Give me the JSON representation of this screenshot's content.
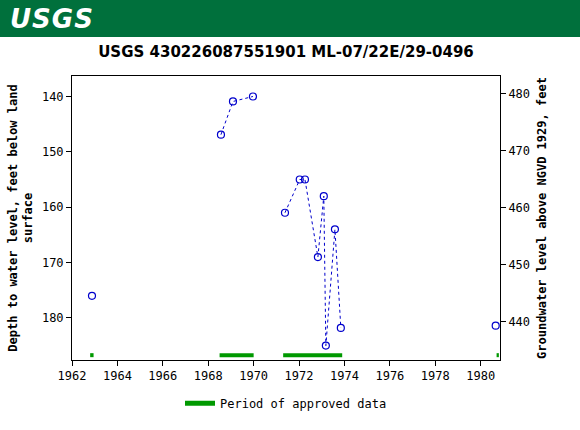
{
  "header": "USGS",
  "chart_data": {
    "type": "scatter",
    "title": "USGS 430226087551901 ML-07/22E/29-0496",
    "ylabel": "Depth to water level, feet below land surface",
    "y2label": "Groundwater level above NGVD 1929, feet",
    "x": [
      1962.88,
      null,
      1968.56,
      1969.09,
      1969.97,
      null,
      1971.38,
      1972.03,
      1972.26,
      1972.83,
      1973.09,
      1973.18,
      1973.58,
      1973.84,
      null,
      1980.66
    ],
    "series": [
      {
        "color": "#0000cc",
        "marker": "circle-open",
        "line_style": "dot",
        "values": [
          176,
          null,
          146.9,
          140.9,
          140.0,
          null,
          161.0,
          155.0,
          155.0,
          169.0,
          158.0,
          185.0,
          164.0,
          181.8,
          null,
          181.4
        ]
      }
    ],
    "approved_data": {
      "name": "Period of approved data",
      "color": "#009900",
      "periods": [
        [
          1962.8,
          1962.95
        ],
        [
          1968.5,
          1970.0
        ],
        [
          1971.3,
          1973.9
        ],
        [
          1980.7,
          1980.8
        ]
      ]
    },
    "xlim": [
      1962,
      1980.85
    ],
    "xticks": [
      1962,
      1964,
      1966,
      1968,
      1970,
      1972,
      1974,
      1976,
      1978,
      1980
    ],
    "ylim": [
      187.6,
      136.3
    ],
    "yticks": [
      140,
      150,
      160,
      170,
      180
    ],
    "y2lim": [
      433.3,
      483.1
    ],
    "y2ticks": [
      440,
      450,
      460,
      470,
      480
    ],
    "grid": false,
    "legend": "bottom"
  }
}
